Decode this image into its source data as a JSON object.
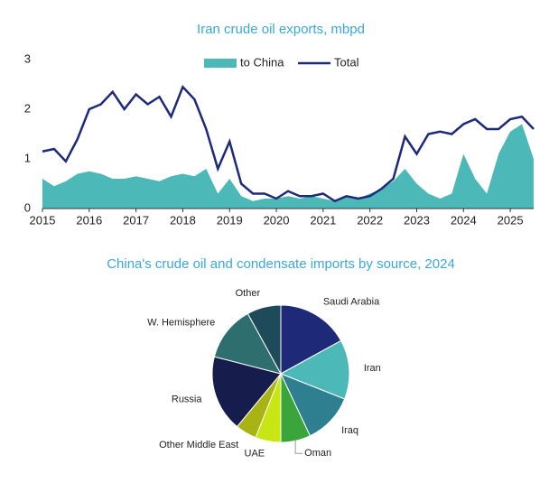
{
  "chart_data": [
    {
      "type": "line",
      "title": "Iran crude oil exports, mbpd",
      "x": [
        2015,
        2015.25,
        2015.5,
        2015.75,
        2016,
        2016.25,
        2016.5,
        2016.75,
        2017,
        2017.25,
        2017.5,
        2017.75,
        2018,
        2018.25,
        2018.5,
        2018.75,
        2019,
        2019.25,
        2019.5,
        2019.75,
        2020,
        2020.25,
        2020.5,
        2020.75,
        2021,
        2021.25,
        2021.5,
        2021.75,
        2022,
        2022.25,
        2022.5,
        2022.75,
        2023,
        2023.25,
        2023.5,
        2023.75,
        2024,
        2024.25,
        2024.5,
        2024.75,
        2025,
        2025.25,
        2025.5
      ],
      "series": [
        {
          "name": "to China",
          "type": "area",
          "color": "#4cb8b8",
          "values": [
            0.6,
            0.45,
            0.55,
            0.7,
            0.75,
            0.7,
            0.6,
            0.6,
            0.65,
            0.6,
            0.55,
            0.65,
            0.7,
            0.65,
            0.8,
            0.3,
            0.6,
            0.25,
            0.15,
            0.2,
            0.2,
            0.25,
            0.2,
            0.25,
            0.2,
            0.15,
            0.25,
            0.2,
            0.3,
            0.4,
            0.55,
            0.8,
            0.5,
            0.3,
            0.2,
            0.3,
            1.1,
            0.6,
            0.3,
            1.1,
            1.55,
            1.7,
            1.0
          ]
        },
        {
          "name": "Total",
          "type": "line",
          "color": "#1e2a78",
          "values": [
            1.15,
            1.2,
            0.95,
            1.4,
            2.0,
            2.1,
            2.35,
            2.0,
            2.3,
            2.1,
            2.25,
            1.85,
            2.45,
            2.2,
            1.6,
            0.8,
            1.35,
            0.5,
            0.3,
            0.3,
            0.2,
            0.35,
            0.25,
            0.25,
            0.3,
            0.15,
            0.25,
            0.2,
            0.25,
            0.4,
            0.6,
            1.45,
            1.1,
            1.5,
            1.55,
            1.5,
            1.7,
            1.8,
            1.6,
            1.6,
            1.8,
            1.85,
            1.6
          ]
        }
      ],
      "xlim": [
        2015,
        2025.5
      ],
      "xticks": [
        2015,
        2016,
        2017,
        2018,
        2019,
        2020,
        2021,
        2022,
        2023,
        2024,
        2025
      ],
      "ylim": [
        0,
        3
      ],
      "yticks": [
        0,
        1,
        2,
        3
      ],
      "legend": "top"
    },
    {
      "type": "pie",
      "title": "China's crude oil and condensate imports by source, 2024",
      "categories": [
        "Saudi Arabia",
        "Iran",
        "Iraq",
        "Oman",
        "UAE",
        "Other Middle East",
        "Russia",
        "W. Hemisphere",
        "Other"
      ],
      "values": [
        17,
        14,
        12,
        7,
        6,
        5,
        18,
        13,
        8
      ],
      "colors": [
        "#1e2a78",
        "#4cb8b8",
        "#2e7f8f",
        "#3aa53a",
        "#c8e614",
        "#a8b414",
        "#161c4c",
        "#2e6e6e",
        "#1e4a5a"
      ]
    }
  ]
}
